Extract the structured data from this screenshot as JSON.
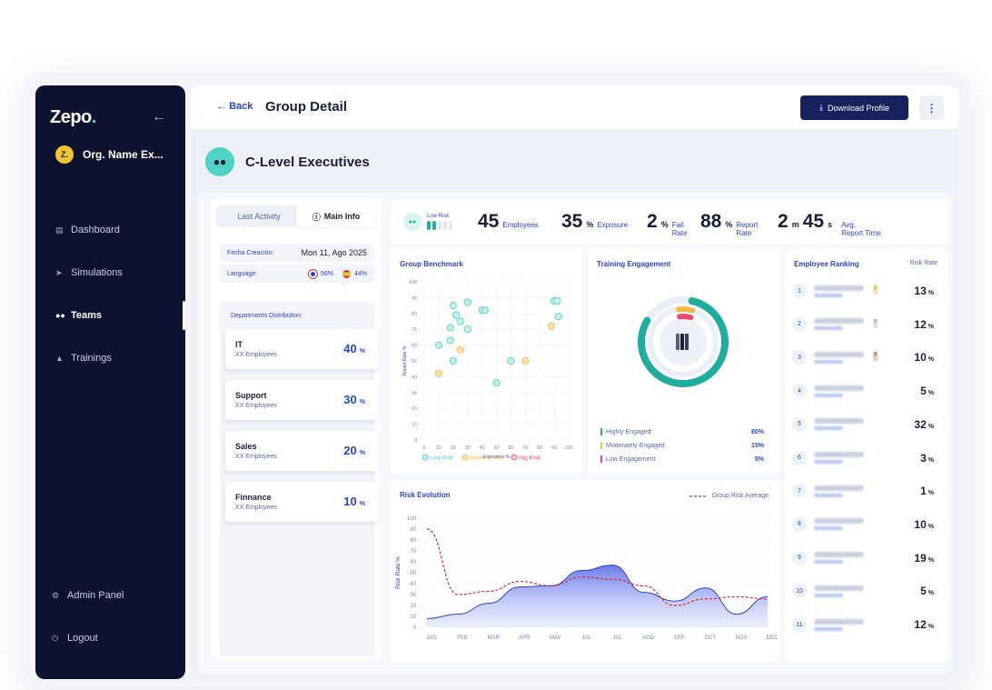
{
  "app": {
    "logo": "Zepo",
    "logo_dot": ".",
    "org_initial": "Z.",
    "org_name": "Org. Name Ex..."
  },
  "nav": [
    {
      "label": "Dashboard",
      "icon": "chart-icon"
    },
    {
      "label": "Simulations",
      "icon": "rocket-icon"
    },
    {
      "label": "Teams",
      "icon": "users-icon",
      "active": true
    },
    {
      "label": "Trainings",
      "icon": "graduation-cap-icon"
    }
  ],
  "nav_bottom": [
    {
      "label": "Admin Panel",
      "icon": "gear-icon"
    },
    {
      "label": "Logout",
      "icon": "power-icon"
    }
  ],
  "header": {
    "back": "Back",
    "title": "Group Detail",
    "download": "Download Profile"
  },
  "group": {
    "name": "C-Level Executives"
  },
  "tabs": {
    "last_activity": "Last Activity",
    "main_info": "Main Info"
  },
  "info": {
    "created_label": "Fecha Creación:",
    "created_value": "Mon 11, Ago 2025",
    "language_label": "Language:",
    "lang_en": "56%",
    "lang_es": "44%"
  },
  "departments": {
    "label": "Departments Distribution:",
    "items": [
      {
        "name": "IT",
        "employees": "XX Employees",
        "value": "40",
        "unit": "%"
      },
      {
        "name": "Support",
        "employees": "XX Employees",
        "value": "30",
        "unit": "%"
      },
      {
        "name": "Sales",
        "employees": "XX Employees",
        "value": "20",
        "unit": "%"
      },
      {
        "name": "Finnance",
        "employees": "XX Employees",
        "value": "10",
        "unit": "%"
      }
    ]
  },
  "stats": {
    "risk": "Low Risk",
    "employees": "45",
    "employees_label": "Employees",
    "exposure": "35",
    "exposure_unit": "%",
    "exposure_label": "Exposure",
    "fail": "2",
    "fail_unit": "%",
    "fail_label1": "Fail",
    "fail_label2": "Rate",
    "report": "88",
    "report_unit": "%",
    "report_label1": "Report",
    "report_label2": "Rate",
    "time_m": "2",
    "time_m_unit": "m",
    "time_s": "45",
    "time_s_unit": "s",
    "time_label1": "Avg.",
    "time_label2": "Report Time"
  },
  "benchmark": {
    "title": "Group Benchmark",
    "legend": [
      "Low Risk",
      "Medium Risk",
      "Hig Risk"
    ],
    "colors": {
      "low": "#4fd3c4",
      "medium": "#f5b944",
      "high": "#ef476f"
    }
  },
  "training": {
    "title": "Training Engagement",
    "rows": [
      {
        "label": "Highly Engaged",
        "value": "80%",
        "color": "#1fae9b"
      },
      {
        "label": "Moderately Engaged",
        "value": "15%",
        "color": "#f5b944"
      },
      {
        "label": "Low Engagement",
        "value": "5%",
        "color": "#ef476f"
      }
    ]
  },
  "ranking": {
    "title": "Employee Ranking",
    "col": "Risk Rate",
    "rows": [
      {
        "n": "1",
        "v": "13",
        "medal": "gold"
      },
      {
        "n": "2",
        "v": "12",
        "medal": "silver"
      },
      {
        "n": "3",
        "v": "10",
        "medal": "bronze"
      },
      {
        "n": "4",
        "v": "5"
      },
      {
        "n": "5",
        "v": "32"
      },
      {
        "n": "6",
        "v": "3"
      },
      {
        "n": "7",
        "v": "1"
      },
      {
        "n": "8",
        "v": "10"
      },
      {
        "n": "9",
        "v": "19"
      },
      {
        "n": "10",
        "v": "5"
      },
      {
        "n": "11",
        "v": "12"
      }
    ],
    "unit": "%"
  },
  "chart_data": [
    {
      "type": "scatter",
      "title": "Group Benchmark",
      "xlabel": "Exposition %",
      "ylabel": "Report Rate %",
      "xlim": [
        0,
        100
      ],
      "ylim": [
        0,
        100
      ],
      "xticks": [
        0,
        10,
        20,
        30,
        40,
        50,
        60,
        70,
        80,
        90,
        100
      ],
      "yticks": [
        0,
        10,
        20,
        30,
        40,
        50,
        60,
        70,
        80,
        90,
        100
      ],
      "series": [
        {
          "name": "Low Risk",
          "color": "#4fd3c4",
          "points": [
            [
              20,
              85
            ],
            [
              22,
              79
            ],
            [
              30,
              87
            ],
            [
              40,
              82
            ],
            [
              42,
              82
            ],
            [
              90,
              88
            ],
            [
              92,
              88
            ],
            [
              93,
              78
            ],
            [
              25,
              75
            ],
            [
              18,
              71
            ],
            [
              30,
              70
            ],
            [
              10,
              60
            ],
            [
              18,
              63
            ],
            [
              20,
              50
            ],
            [
              50,
              36
            ],
            [
              60,
              50
            ]
          ]
        },
        {
          "name": "Medium Risk",
          "color": "#f5b944",
          "points": [
            [
              25,
              57
            ],
            [
              10,
              42
            ],
            [
              70,
              50
            ],
            [
              88,
              72
            ]
          ]
        },
        {
          "name": "Hig Risk",
          "color": "#ef476f",
          "points": []
        }
      ]
    },
    {
      "type": "area",
      "title": "Risk Evolution",
      "ylabel": "Risk Rate %",
      "ylim": [
        0,
        100
      ],
      "yticks": [
        0,
        10,
        20,
        30,
        40,
        50,
        60,
        70,
        80,
        90,
        100
      ],
      "categories": [
        "JAN",
        "FEB",
        "MAR",
        "APR",
        "MAY",
        "JUL",
        "JUL",
        "AGO",
        "SEP",
        "OCT",
        "NOV",
        "DEC"
      ],
      "series": [
        {
          "name": "Risk",
          "values": [
            8,
            12,
            22,
            37,
            38,
            52,
            57,
            32,
            24,
            36,
            12,
            28
          ]
        },
        {
          "name": "Group Risk Average",
          "values": [
            90,
            30,
            33,
            42,
            38,
            46,
            44,
            38,
            20,
            26,
            28,
            26
          ]
        }
      ]
    },
    {
      "type": "pie",
      "title": "Training Engagement",
      "labels": [
        "Highly Engaged",
        "Moderately Engaged",
        "Low Engagement"
      ],
      "values": [
        80,
        15,
        5
      ]
    }
  ]
}
